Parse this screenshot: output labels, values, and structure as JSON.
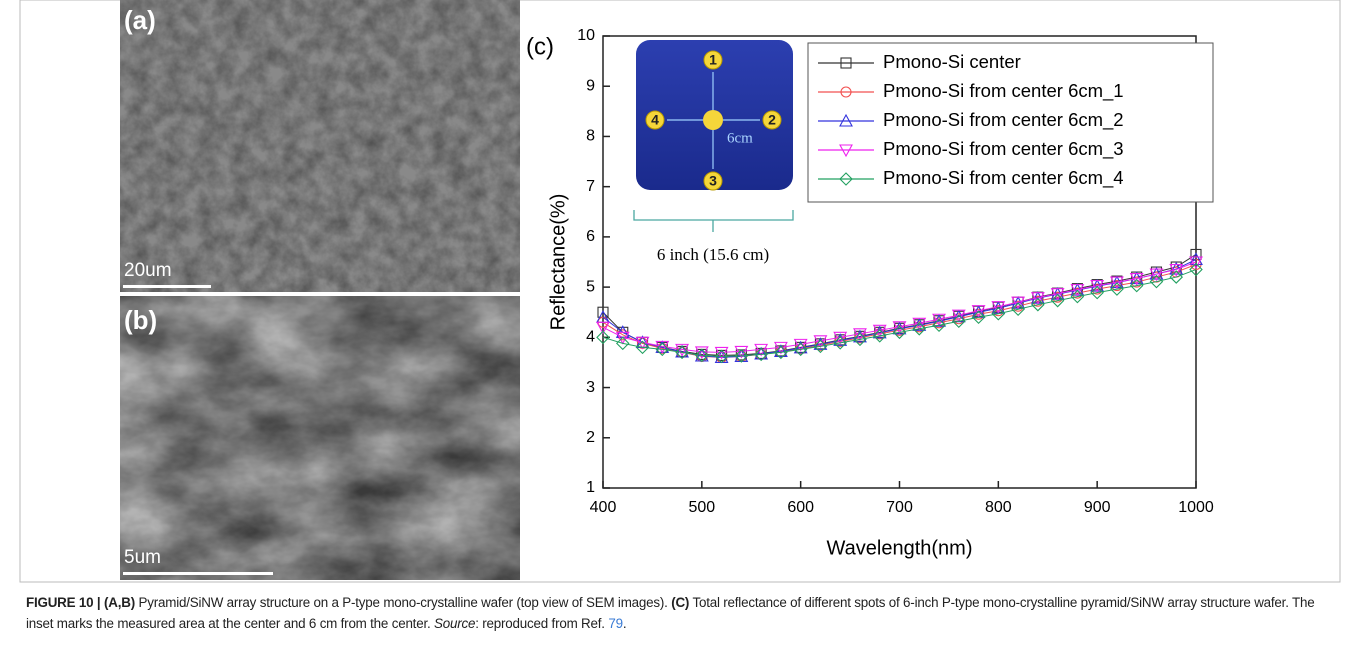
{
  "panels": [
    {
      "label": "(a)",
      "scale": "20um"
    },
    {
      "label": "(b)",
      "scale": "5um"
    }
  ],
  "chart_data": {
    "type": "line",
    "panel_label": "(c)",
    "x_label": "Wavelength(nm)",
    "y_label": "Reflectance(%)",
    "x": [
      400,
      420,
      440,
      460,
      480,
      500,
      520,
      540,
      560,
      580,
      600,
      620,
      640,
      660,
      680,
      700,
      720,
      740,
      760,
      780,
      800,
      820,
      840,
      860,
      880,
      900,
      920,
      940,
      960,
      980,
      1000
    ],
    "series": [
      {
        "name": "Pmono-Si center",
        "color": "#333333",
        "marker": "square",
        "values": [
          4.5,
          4.1,
          3.9,
          3.8,
          3.72,
          3.66,
          3.64,
          3.65,
          3.68,
          3.73,
          3.8,
          3.87,
          3.95,
          4.02,
          4.1,
          4.18,
          4.25,
          4.33,
          4.42,
          4.52,
          4.6,
          4.7,
          4.8,
          4.88,
          4.97,
          5.05,
          5.12,
          5.2,
          5.3,
          5.4,
          5.65
        ]
      },
      {
        "name": "Pmono-Si from center 6cm_1",
        "color": "#f25050",
        "marker": "circle",
        "values": [
          4.3,
          4.05,
          3.88,
          3.78,
          3.7,
          3.62,
          3.6,
          3.62,
          3.66,
          3.71,
          3.77,
          3.84,
          3.92,
          3.99,
          4.07,
          4.14,
          4.21,
          4.29,
          4.37,
          4.46,
          4.53,
          4.62,
          4.72,
          4.8,
          4.88,
          4.96,
          5.03,
          5.1,
          5.2,
          5.3,
          5.45
        ]
      },
      {
        "name": "Pmono-Si from center 6cm_2",
        "color": "#3333dd",
        "marker": "triangle-up",
        "values": [
          4.4,
          4.1,
          3.9,
          3.8,
          3.71,
          3.63,
          3.6,
          3.62,
          3.67,
          3.72,
          3.79,
          3.86,
          3.94,
          4.01,
          4.09,
          4.17,
          4.24,
          4.32,
          4.41,
          4.5,
          4.58,
          4.68,
          4.78,
          4.86,
          4.94,
          5.02,
          5.09,
          5.17,
          5.26,
          5.36,
          5.55
        ]
      },
      {
        "name": "Pmono-Si from center 6cm_3",
        "color": "#ee22ee",
        "marker": "triangle-down",
        "values": [
          4.2,
          4.0,
          3.9,
          3.82,
          3.76,
          3.71,
          3.7,
          3.72,
          3.76,
          3.8,
          3.86,
          3.93,
          4.0,
          4.07,
          4.14,
          4.21,
          4.28,
          4.36,
          4.44,
          4.53,
          4.61,
          4.7,
          4.79,
          4.87,
          4.95,
          5.03,
          5.1,
          5.17,
          5.26,
          5.35,
          5.5
        ]
      },
      {
        "name": "Pmono-Si from center 6cm_4",
        "color": "#22a060",
        "marker": "diamond",
        "values": [
          4.0,
          3.88,
          3.8,
          3.76,
          3.7,
          3.64,
          3.62,
          3.63,
          3.66,
          3.7,
          3.76,
          3.82,
          3.89,
          3.96,
          4.03,
          4.1,
          4.17,
          4.24,
          4.32,
          4.4,
          4.47,
          4.56,
          4.65,
          4.73,
          4.81,
          4.89,
          4.96,
          5.03,
          5.11,
          5.2,
          5.35
        ]
      }
    ],
    "xlim": [
      400,
      1000
    ],
    "xticks": [
      400,
      500,
      600,
      700,
      800,
      900,
      1000
    ],
    "ylim": [
      1,
      10
    ],
    "yticks": [
      1,
      2,
      3,
      4,
      5,
      6,
      7,
      8,
      9,
      10
    ],
    "inset_points": [
      "1",
      "2",
      "3",
      "4"
    ],
    "inset_distance": "6cm",
    "inset_size": "6 inch (15.6 cm)"
  },
  "caption": {
    "parts": [
      {
        "text": "FIGURE 10 | (A,B)",
        "style": "bold"
      },
      {
        "text": " Pyramid/SiNW array structure on a P-type mono-crystalline wafer (top view of SEM images). ",
        "style": "normal"
      },
      {
        "text": "(C)",
        "style": "bold"
      },
      {
        "text": " Total reflectance of different spots of 6-inch P-type mono-crystalline pyramid/SiNW array structure wafer. The inset marks the measured area at the center and 6 cm from the center. ",
        "style": "normal"
      },
      {
        "text": "Source",
        "style": "italic"
      },
      {
        "text": ": reproduced from Ref. ",
        "style": "normal"
      },
      {
        "text": "79",
        "style": "link"
      },
      {
        "text": ".",
        "style": "normal"
      }
    ]
  }
}
